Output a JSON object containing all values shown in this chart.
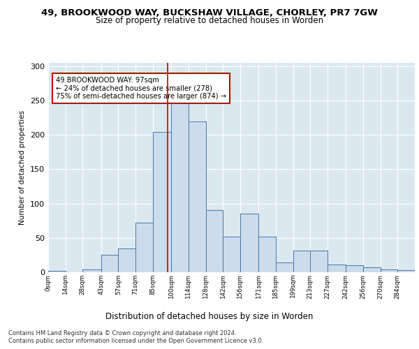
{
  "title": "49, BROOKWOOD WAY, BUCKSHAW VILLAGE, CHORLEY, PR7 7GW",
  "subtitle": "Size of property relative to detached houses in Worden",
  "xlabel": "Distribution of detached houses by size in Worden",
  "ylabel": "Number of detached properties",
  "bin_edges": [
    0,
    14,
    28,
    43,
    57,
    71,
    85,
    100,
    114,
    128,
    142,
    156,
    171,
    185,
    199,
    213,
    227,
    242,
    256,
    270,
    284,
    298
  ],
  "bar_heights": [
    2,
    0,
    4,
    25,
    35,
    72,
    204,
    249,
    220,
    90,
    52,
    85,
    52,
    14,
    32,
    32,
    11,
    10,
    7,
    4,
    3
  ],
  "bar_color": "#ccdcec",
  "bar_edge_color": "#4477aa",
  "property_size": 97,
  "vline_color": "#cc0000",
  "annotation_text": "49 BROOKWOOD WAY: 97sqm\n← 24% of detached houses are smaller (278)\n75% of semi-detached houses are larger (874) →",
  "annotation_box_color": "white",
  "annotation_box_edge_color": "#cc0000",
  "plot_bg_color": "#dce8f0",
  "ylim": [
    0,
    305
  ],
  "yticks": [
    0,
    50,
    100,
    150,
    200,
    250,
    300
  ],
  "footnote1": "Contains HM Land Registry data © Crown copyright and database right 2024.",
  "footnote2": "Contains public sector information licensed under the Open Government Licence v3.0.",
  "tick_labels": [
    "0sqm",
    "14sqm",
    "28sqm",
    "43sqm",
    "57sqm",
    "71sqm",
    "85sqm",
    "100sqm",
    "114sqm",
    "128sqm",
    "142sqm",
    "156sqm",
    "171sqm",
    "185sqm",
    "199sqm",
    "213sqm",
    "227sqm",
    "242sqm",
    "256sqm",
    "270sqm",
    "284sqm"
  ]
}
